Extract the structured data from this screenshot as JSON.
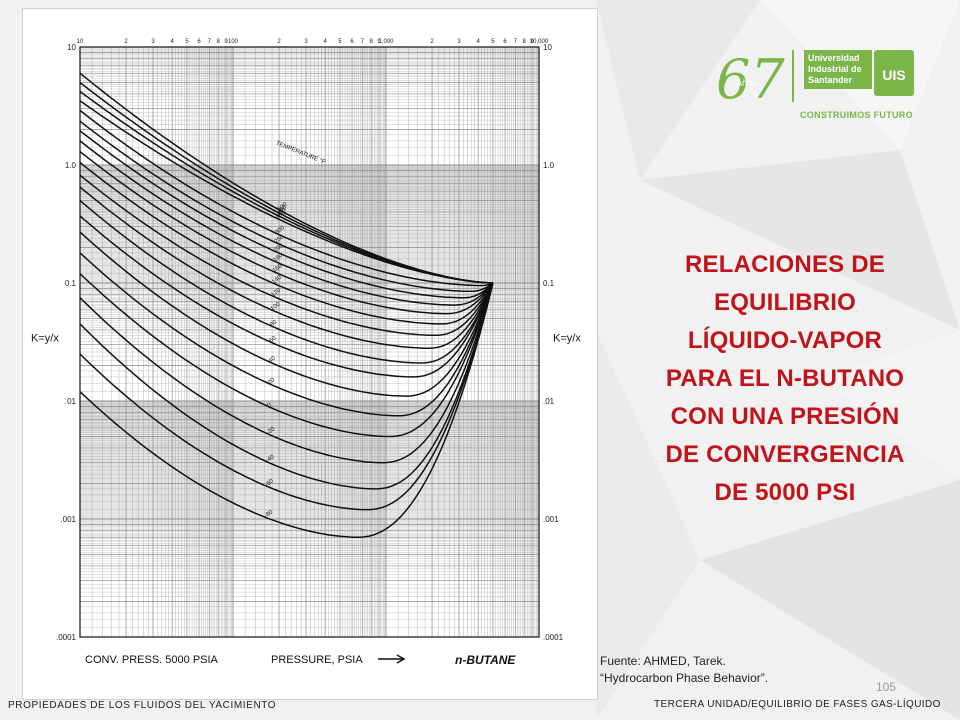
{
  "slide": {
    "title_lines": [
      "RELACIONES DE",
      "EQUILIBRIO",
      "LÍQUIDO-VAPOR",
      "PARA EL N-BUTANO",
      "CON UNA PRESIÓN",
      "DE CONVERGENCIA",
      "DE 5000 PSI"
    ],
    "source_lines": [
      "Fuente: AHMED, Tarek.",
      "“Hydrocarbon Phase Behavior”."
    ],
    "page_number": "105",
    "footer_left": "PROPIEDADES DE LOS FLUIDOS DEL YACIMIENTO",
    "footer_right": "TERCERA UNIDAD/EQUILIBRIO DE FASES GAS-LÍQUIDO",
    "colors": {
      "title": "#c0141a",
      "brand_green": "#7ab648"
    }
  },
  "logo": {
    "anniversary": "67",
    "anniversary_word": "Años",
    "university": [
      "Universidad",
      "Industrial de",
      "Santander"
    ],
    "mark": "UIS",
    "slogan": "CONSTRUIMOS FUTURO"
  },
  "chart_data": {
    "type": "line",
    "x_scale": "log",
    "y_scale": "log",
    "xlim": [
      10,
      10000
    ],
    "ylim": [
      0.0001,
      10
    ],
    "x_tick_labels": [
      "10",
      "2",
      "3",
      "4",
      "5",
      "6",
      "7",
      "8",
      "9",
      "100",
      "2",
      "3",
      "4",
      "5",
      "6",
      "7",
      "8",
      "9",
      "1,000",
      "2",
      "3",
      "4",
      "5",
      "6",
      "7",
      "8",
      "9",
      "10,000"
    ],
    "y_tick_labels": [
      "10",
      "1.0",
      "0.1",
      ".01",
      ".001",
      ".0001"
    ],
    "y_label": "K=y/x",
    "x_label": "PRESSURE, PSIA",
    "convergence_label": "CONV. PRESS. 5000 PSIA",
    "component_label": "n-BUTANE",
    "temperature_header": "TEMPERATURE °F",
    "convergence_point": {
      "x": 5000,
      "y": 0.1
    },
    "series": [
      {
        "name": "500",
        "K_at_10psia": 6.0,
        "K_min": 0.1,
        "p_min_psia": 5000
      },
      {
        "name": "450",
        "K_at_10psia": 5.0,
        "K_min": 0.1,
        "p_min_psia": 5000
      },
      {
        "name": "400",
        "K_at_10psia": 4.2,
        "K_min": 0.1,
        "p_min_psia": 5000
      },
      {
        "name": "350",
        "K_at_10psia": 3.5,
        "K_min": 0.1,
        "p_min_psia": 5000
      },
      {
        "name": "300",
        "K_at_10psia": 2.9,
        "K_min": 0.095,
        "p_min_psia": 4200
      },
      {
        "name": "250",
        "K_at_10psia": 2.35,
        "K_min": 0.085,
        "p_min_psia": 3600
      },
      {
        "name": "200",
        "K_at_10psia": 1.95,
        "K_min": 0.075,
        "p_min_psia": 3200
      },
      {
        "name": "180",
        "K_at_10psia": 1.6,
        "K_min": 0.065,
        "p_min_psia": 2800
      },
      {
        "name": "160",
        "K_at_10psia": 1.3,
        "K_min": 0.055,
        "p_min_psia": 2500
      },
      {
        "name": "140",
        "K_at_10psia": 1.05,
        "K_min": 0.045,
        "p_min_psia": 2300
      },
      {
        "name": "120",
        "K_at_10psia": 0.82,
        "K_min": 0.036,
        "p_min_psia": 2100
      },
      {
        "name": "100",
        "K_at_10psia": 0.65,
        "K_min": 0.028,
        "p_min_psia": 1900
      },
      {
        "name": "80",
        "K_at_10psia": 0.5,
        "K_min": 0.021,
        "p_min_psia": 1700
      },
      {
        "name": "60",
        "K_at_10psia": 0.37,
        "K_min": 0.016,
        "p_min_psia": 1500
      },
      {
        "name": "40",
        "K_at_10psia": 0.27,
        "K_min": 0.011,
        "p_min_psia": 1350
      },
      {
        "name": "20",
        "K_at_10psia": 0.18,
        "K_min": 0.0075,
        "p_min_psia": 1200
      },
      {
        "name": "0",
        "K_at_10psia": 0.12,
        "K_min": 0.005,
        "p_min_psia": 1050
      },
      {
        "name": "-20",
        "K_at_10psia": 0.075,
        "K_min": 0.003,
        "p_min_psia": 950
      },
      {
        "name": "-40",
        "K_at_10psia": 0.045,
        "K_min": 0.0018,
        "p_min_psia": 850
      },
      {
        "name": "-60",
        "K_at_10psia": 0.025,
        "K_min": 0.0012,
        "p_min_psia": 750
      },
      {
        "name": "-80",
        "K_at_10psia": 0.012,
        "K_min": 0.0007,
        "p_min_psia": 650
      }
    ]
  }
}
